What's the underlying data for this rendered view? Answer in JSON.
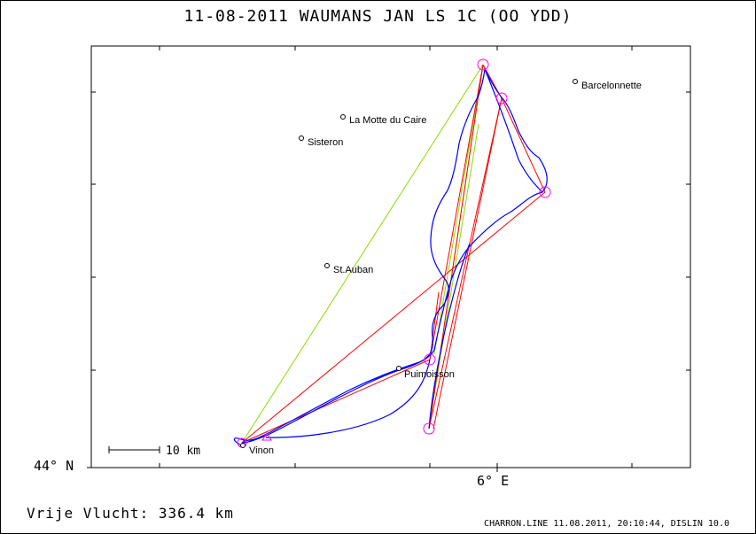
{
  "title": "11-08-2011   WAUMANS JAN   LS 1C (OO YDD)",
  "places": [
    {
      "name": "Barcelonnette"
    },
    {
      "name": "La Motte du Caire"
    },
    {
      "name": "Sisteron"
    },
    {
      "name": "St.Auban"
    },
    {
      "name": "Puimoisson"
    },
    {
      "name": "Vinon"
    }
  ],
  "axis": {
    "lat_label": "44° N",
    "lon_label": "6° E"
  },
  "scale": {
    "label": "10 km"
  },
  "footer": {
    "distance": "Vrije Vlucht:  336.4 km",
    "credit": "CHARRON.LINE 11.08.2011, 20:10:44, DISLIN 10.0"
  },
  "colors": {
    "track": "#0000ff",
    "task_lines": "#ff0000",
    "alt_lines": "#88dd00",
    "turnpoints": "#ff00ff"
  }
}
